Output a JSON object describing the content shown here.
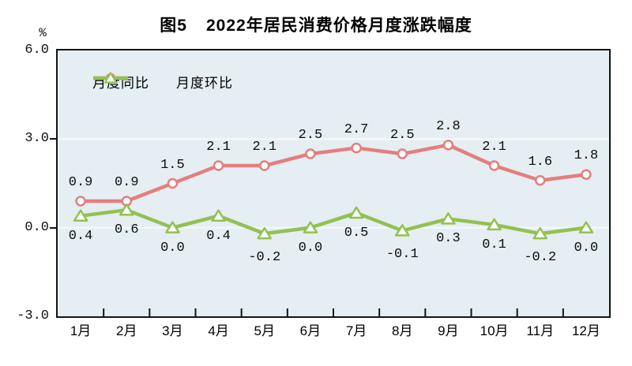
{
  "title": {
    "prefix": "图5",
    "text": "2022年居民消费价格月度涨跌幅度"
  },
  "chart_data": {
    "type": "line",
    "title": "图5 2022年居民消费价格月度涨跌幅度",
    "unit": "%",
    "categories": [
      "1月",
      "2月",
      "3月",
      "4月",
      "5月",
      "6月",
      "7月",
      "8月",
      "9月",
      "10月",
      "11月",
      "12月"
    ],
    "series": [
      {
        "name": "月度同比",
        "marker": "circle",
        "color": "#e57e7e",
        "marker_fill": "#ffffff",
        "values": [
          0.9,
          0.9,
          1.5,
          2.1,
          2.1,
          2.5,
          2.7,
          2.5,
          2.8,
          2.1,
          1.6,
          1.8
        ],
        "labels": [
          "0.9",
          "0.9",
          "1.5",
          "2.1",
          "2.1",
          "2.5",
          "2.7",
          "2.5",
          "2.8",
          "2.1",
          "1.6",
          "1.8"
        ]
      },
      {
        "name": "月度环比",
        "marker": "triangle",
        "color": "#92c153",
        "marker_fill": "#ffffff",
        "values": [
          0.4,
          0.6,
          0.0,
          0.4,
          -0.2,
          0.0,
          0.5,
          -0.1,
          0.3,
          0.1,
          -0.2,
          0.0
        ],
        "labels": [
          "0.4",
          "0.6",
          "0.0",
          "0.4",
          "-0.2",
          "0.0",
          "0.5",
          "-0.1",
          "0.3",
          "0.1",
          "-0.2",
          "0.0"
        ]
      }
    ],
    "ylim": [
      -3.0,
      6.0
    ],
    "yticks": [
      6.0,
      3.0,
      0.0,
      -3.0
    ],
    "ytick_labels": [
      "6.0",
      "3.0",
      "0.0",
      "-3.0"
    ],
    "gridlines": [
      3.0,
      0.0
    ],
    "grid_color": "#f6fafb",
    "plot_background": "#e5eef2",
    "axis_color": "#141414",
    "legend_position": "top-left-inside"
  }
}
